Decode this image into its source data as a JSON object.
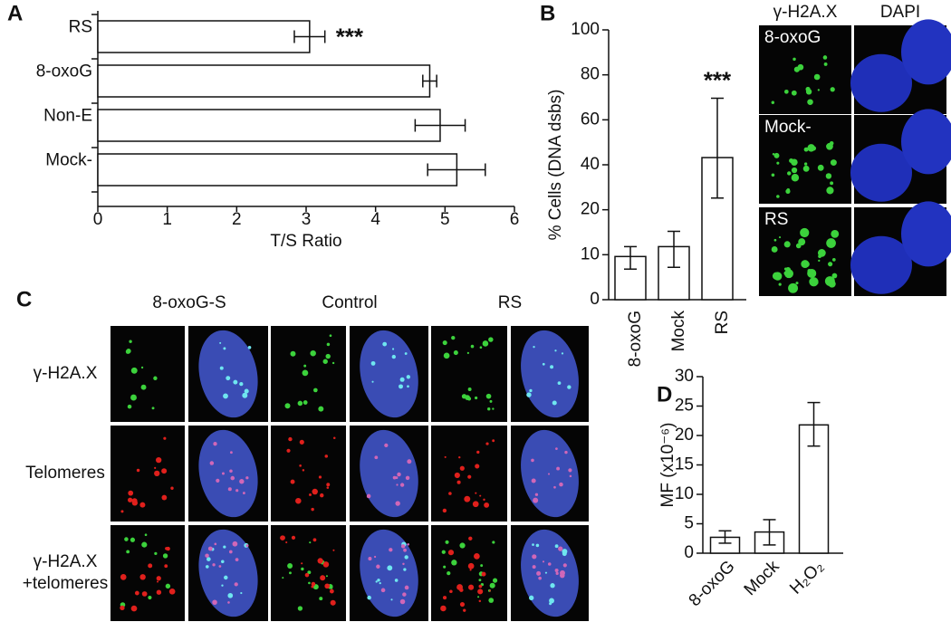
{
  "panel_labels": [
    "A",
    "B",
    "C",
    "D"
  ],
  "chart_data": [
    {
      "type": "bar",
      "orientation": "horizontal",
      "categories": [
        "RS",
        "8-oxoG",
        "Non-E",
        "Mock-"
      ],
      "values": [
        3.05,
        4.78,
        4.93,
        5.17
      ],
      "error_low": [
        2.83,
        4.68,
        4.57,
        4.75
      ],
      "error_high": [
        3.27,
        4.88,
        5.29,
        5.58
      ],
      "significance": [
        "***",
        null,
        null,
        null
      ],
      "xlabel": "T/S Ratio",
      "xlim": [
        0,
        6
      ],
      "xticks": [
        0,
        1,
        2,
        3,
        4,
        5,
        6
      ],
      "color": "#ffffff"
    },
    {
      "type": "bar",
      "orientation": "vertical",
      "categories": [
        "8-oxoG",
        "Mock",
        "RS"
      ],
      "values": [
        9.6,
        11.8,
        43.2
      ],
      "error_low": [
        6.8,
        7.2,
        25.2
      ],
      "error_high": [
        11.8,
        15.2,
        69.6
      ],
      "significance": [
        null,
        null,
        "***"
      ],
      "ylabel": "% Cells (DNA dsbs)",
      "ylim": [
        0,
        100
      ],
      "yticks": [
        0,
        10,
        20,
        40,
        60,
        80,
        100
      ],
      "color": "#ffffff"
    },
    {
      "type": "bar",
      "orientation": "vertical",
      "categories": [
        "8-oxoG",
        "Mock",
        "H₂O₂"
      ],
      "values": [
        2.7,
        3.6,
        21.8
      ],
      "error_low": [
        1.7,
        1.4,
        18.2
      ],
      "error_high": [
        3.8,
        5.7,
        25.6
      ],
      "significance": [
        null,
        null,
        null
      ],
      "ylabel": "MF (x10⁻⁶)",
      "ylim": [
        0,
        30
      ],
      "yticks": [
        0,
        5,
        10,
        15,
        20,
        25,
        30
      ],
      "color": "#ffffff"
    }
  ],
  "image_panel_B": {
    "columns": [
      "γ-H2A.X",
      "DAPI"
    ],
    "rows": [
      "8-oxoG",
      "Mock-",
      "RS"
    ]
  },
  "image_panel_C": {
    "columns": [
      "8-oxoG-S",
      "Control",
      "RS"
    ],
    "rows": [
      [
        "γ-H2A.X"
      ],
      [
        "Telomeres"
      ],
      [
        "γ-H2A.X",
        "+telomeres"
      ]
    ]
  }
}
